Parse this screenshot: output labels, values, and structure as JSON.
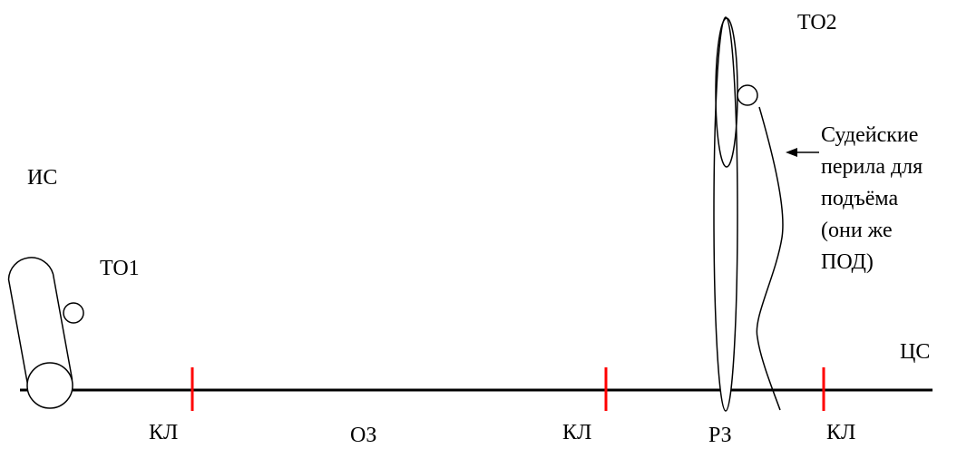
{
  "labels": {
    "is": "ИС",
    "to1": "ТО1",
    "to2": "ТО2",
    "cs": "ЦС",
    "kl_left": "КЛ",
    "oz": "ОЗ",
    "kl_middle": "КЛ",
    "rz": "РЗ",
    "kl_right": "КЛ"
  },
  "note": {
    "lines": [
      "Судейские",
      "перила для",
      "подъёма",
      "(они же",
      "ПОД)"
    ]
  },
  "colors": {
    "line": "#000000",
    "marker": "#ff0000"
  }
}
